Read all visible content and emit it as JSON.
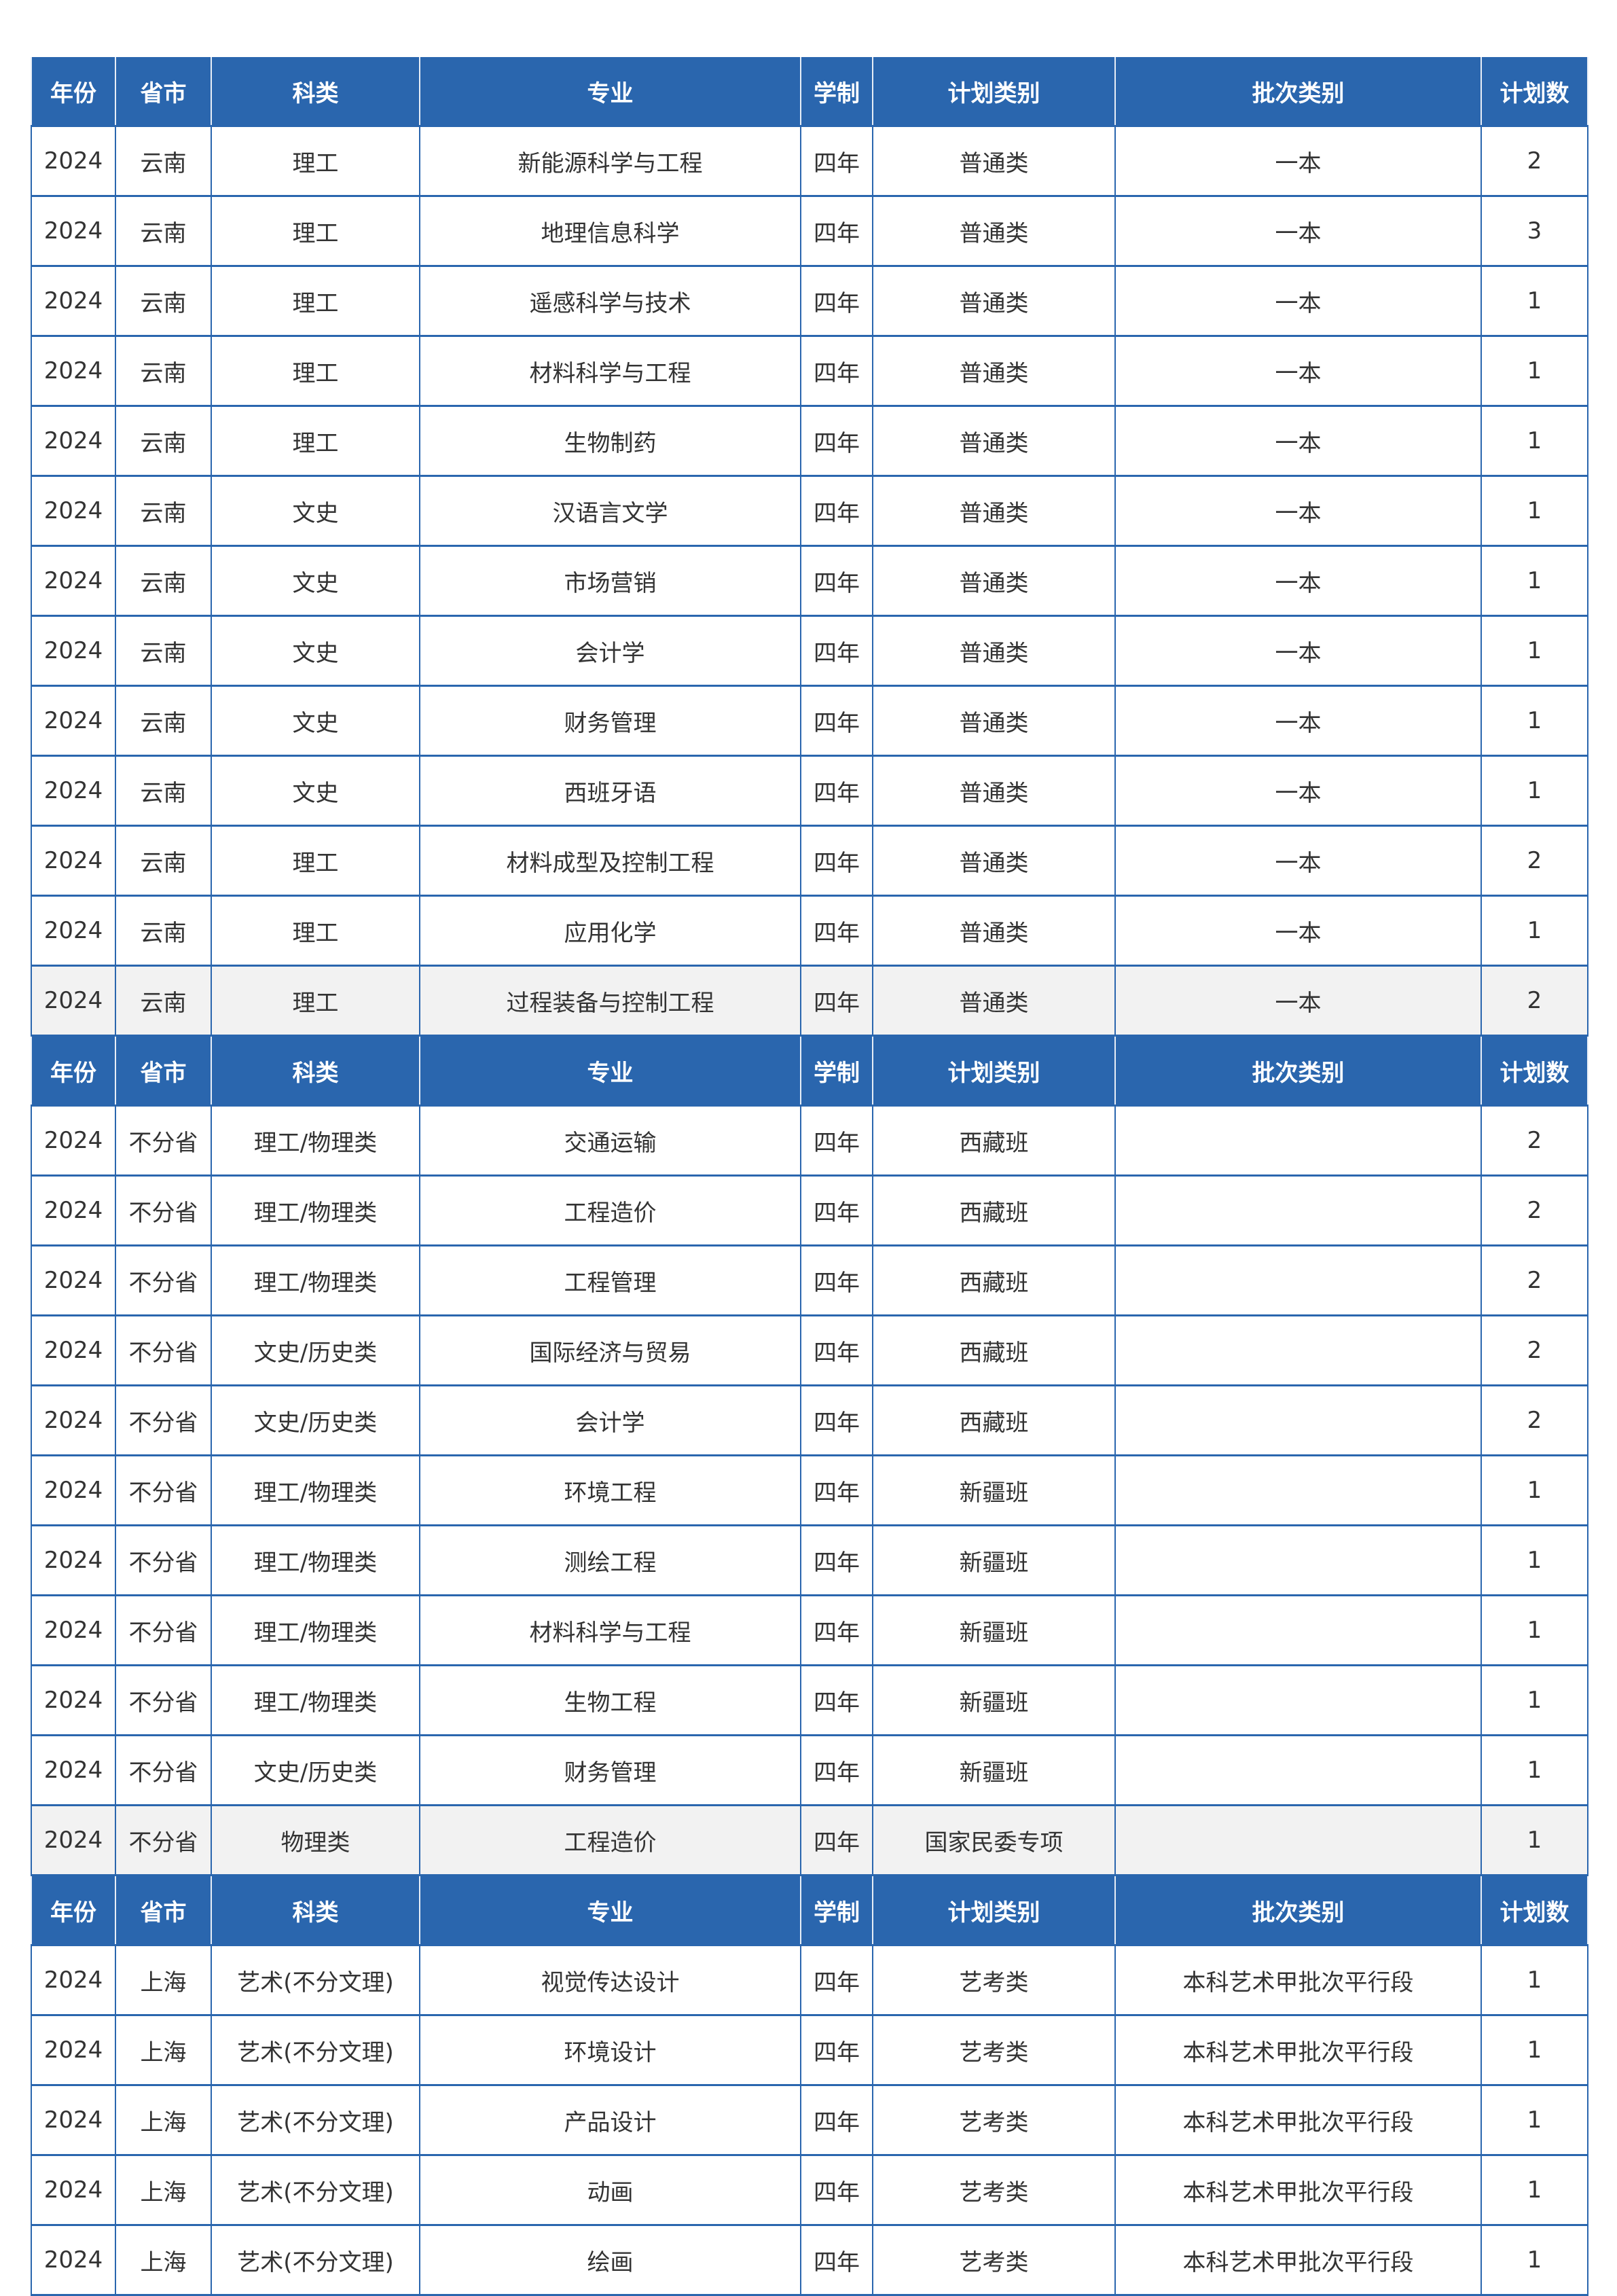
{
  "headers": [
    "年份",
    "省市",
    "科类",
    "专业",
    "学制",
    "计划类别",
    "批次类别",
    "计划数"
  ],
  "sections": [
    {
      "rows": [
        [
          "2024",
          "云南",
          "理工",
          "新能源科学与工程",
          "四年",
          "普通类",
          "一本",
          "2"
        ],
        [
          "2024",
          "云南",
          "理工",
          "地理信息科学",
          "四年",
          "普通类",
          "一本",
          "3"
        ],
        [
          "2024",
          "云南",
          "理工",
          "遥感科学与技术",
          "四年",
          "普通类",
          "一本",
          "1"
        ],
        [
          "2024",
          "云南",
          "理工",
          "材料科学与工程",
          "四年",
          "普通类",
          "一本",
          "1"
        ],
        [
          "2024",
          "云南",
          "理工",
          "生物制药",
          "四年",
          "普通类",
          "一本",
          "1"
        ],
        [
          "2024",
          "云南",
          "文史",
          "汉语言文学",
          "四年",
          "普通类",
          "一本",
          "1"
        ],
        [
          "2024",
          "云南",
          "文史",
          "市场营销",
          "四年",
          "普通类",
          "一本",
          "1"
        ],
        [
          "2024",
          "云南",
          "文史",
          "会计学",
          "四年",
          "普通类",
          "一本",
          "1"
        ],
        [
          "2024",
          "云南",
          "文史",
          "财务管理",
          "四年",
          "普通类",
          "一本",
          "1"
        ],
        [
          "2024",
          "云南",
          "文史",
          "西班牙语",
          "四年",
          "普通类",
          "一本",
          "1"
        ],
        [
          "2024",
          "云南",
          "理工",
          "材料成型及控制工程",
          "四年",
          "普通类",
          "一本",
          "2"
        ],
        [
          "2024",
          "云南",
          "理工",
          "应用化学",
          "四年",
          "普通类",
          "一本",
          "1"
        ],
        [
          "2024",
          "云南",
          "理工",
          "过程装备与控制工程",
          "四年",
          "普通类",
          "一本",
          "2"
        ]
      ]
    },
    {
      "rows": [
        [
          "2024",
          "不分省",
          "理工/物理类",
          "交通运输",
          "四年",
          "西藏班",
          "",
          "2"
        ],
        [
          "2024",
          "不分省",
          "理工/物理类",
          "工程造价",
          "四年",
          "西藏班",
          "",
          "2"
        ],
        [
          "2024",
          "不分省",
          "理工/物理类",
          "工程管理",
          "四年",
          "西藏班",
          "",
          "2"
        ],
        [
          "2024",
          "不分省",
          "文史/历史类",
          "国际经济与贸易",
          "四年",
          "西藏班",
          "",
          "2"
        ],
        [
          "2024",
          "不分省",
          "文史/历史类",
          "会计学",
          "四年",
          "西藏班",
          "",
          "2"
        ],
        [
          "2024",
          "不分省",
          "理工/物理类",
          "环境工程",
          "四年",
          "新疆班",
          "",
          "1"
        ],
        [
          "2024",
          "不分省",
          "理工/物理类",
          "测绘工程",
          "四年",
          "新疆班",
          "",
          "1"
        ],
        [
          "2024",
          "不分省",
          "理工/物理类",
          "材料科学与工程",
          "四年",
          "新疆班",
          "",
          "1"
        ],
        [
          "2024",
          "不分省",
          "理工/物理类",
          "生物工程",
          "四年",
          "新疆班",
          "",
          "1"
        ],
        [
          "2024",
          "不分省",
          "文史/历史类",
          "财务管理",
          "四年",
          "新疆班",
          "",
          "1"
        ],
        [
          "2024",
          "不分省",
          "物理类",
          "工程造价",
          "四年",
          "国家民委专项",
          "",
          "1"
        ]
      ]
    },
    {
      "rows": [
        [
          "2024",
          "上海",
          "艺术(不分文理)",
          "视觉传达设计",
          "四年",
          "艺考类",
          "本科艺术甲批次平行段",
          "1"
        ],
        [
          "2024",
          "上海",
          "艺术(不分文理)",
          "环境设计",
          "四年",
          "艺考类",
          "本科艺术甲批次平行段",
          "1"
        ],
        [
          "2024",
          "上海",
          "艺术(不分文理)",
          "产品设计",
          "四年",
          "艺考类",
          "本科艺术甲批次平行段",
          "1"
        ],
        [
          "2024",
          "上海",
          "艺术(不分文理)",
          "动画",
          "四年",
          "艺考类",
          "本科艺术甲批次平行段",
          "1"
        ],
        [
          "2024",
          "上海",
          "艺术(不分文理)",
          "绘画",
          "四年",
          "艺考类",
          "本科艺术甲批次平行段",
          "1"
        ]
      ]
    }
  ],
  "colors": {
    "header_bg": "#2a66ae",
    "highlight_row": "#f2f2f2"
  }
}
